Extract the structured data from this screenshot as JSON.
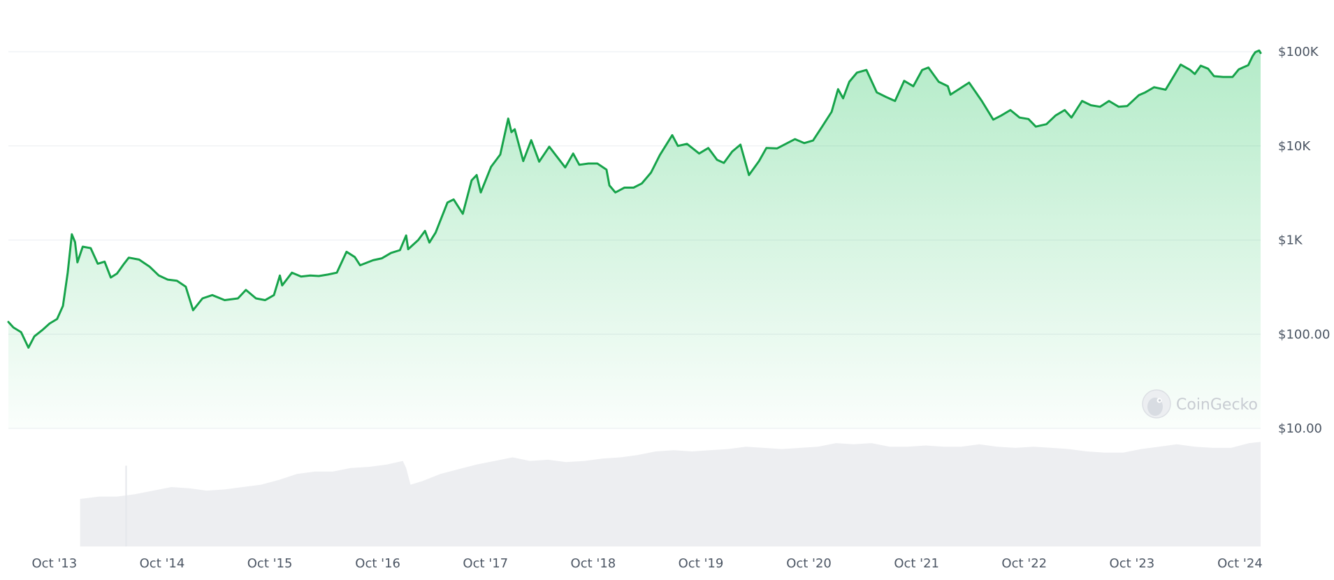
{
  "chart_data": {
    "type": "line",
    "title": "",
    "xlabel": "",
    "ylabel": "",
    "y_scale": "log",
    "ylim": [
      10,
      100000
    ],
    "y_ticks": [
      {
        "value": 100000,
        "label": "$100K"
      },
      {
        "value": 10000,
        "label": "$10K"
      },
      {
        "value": 1000,
        "label": "$1K"
      },
      {
        "value": 100,
        "label": "$100.00"
      },
      {
        "value": 10,
        "label": "$10.00"
      }
    ],
    "x_range": [
      "2013-04-28",
      "2024-12-10"
    ],
    "x_ticks": [
      {
        "date": "2013-10-01",
        "label": "Oct '13"
      },
      {
        "date": "2014-10-01",
        "label": "Oct '14"
      },
      {
        "date": "2015-10-01",
        "label": "Oct '15"
      },
      {
        "date": "2016-10-01",
        "label": "Oct '16"
      },
      {
        "date": "2017-10-01",
        "label": "Oct '17"
      },
      {
        "date": "2018-10-01",
        "label": "Oct '18"
      },
      {
        "date": "2019-10-01",
        "label": "Oct '19"
      },
      {
        "date": "2020-10-01",
        "label": "Oct '20"
      },
      {
        "date": "2021-10-01",
        "label": "Oct '21"
      },
      {
        "date": "2022-10-01",
        "label": "Oct '22"
      },
      {
        "date": "2023-10-01",
        "label": "Oct '23"
      },
      {
        "date": "2024-10-01",
        "label": "Oct '24"
      }
    ],
    "series": [
      {
        "color": "#16a34a",
        "points": [
          [
            "2013-04-28",
            135
          ],
          [
            "2013-05-15",
            118
          ],
          [
            "2013-06-10",
            105
          ],
          [
            "2013-07-05",
            72
          ],
          [
            "2013-07-25",
            95
          ],
          [
            "2013-08-20",
            110
          ],
          [
            "2013-09-15",
            130
          ],
          [
            "2013-10-10",
            145
          ],
          [
            "2013-10-30",
            200
          ],
          [
            "2013-11-15",
            450
          ],
          [
            "2013-11-29",
            1150
          ],
          [
            "2013-12-10",
            950
          ],
          [
            "2013-12-18",
            580
          ],
          [
            "2014-01-05",
            850
          ],
          [
            "2014-02-01",
            820
          ],
          [
            "2014-02-25",
            560
          ],
          [
            "2014-03-20",
            590
          ],
          [
            "2014-04-10",
            400
          ],
          [
            "2014-05-01",
            440
          ],
          [
            "2014-05-25",
            560
          ],
          [
            "2014-06-10",
            650
          ],
          [
            "2014-07-15",
            620
          ],
          [
            "2014-08-20",
            520
          ],
          [
            "2014-09-20",
            420
          ],
          [
            "2014-10-20",
            380
          ],
          [
            "2014-11-20",
            370
          ],
          [
            "2014-12-20",
            320
          ],
          [
            "2015-01-14",
            180
          ],
          [
            "2015-02-15",
            240
          ],
          [
            "2015-03-20",
            260
          ],
          [
            "2015-05-01",
            230
          ],
          [
            "2015-06-15",
            240
          ],
          [
            "2015-07-12",
            295
          ],
          [
            "2015-08-15",
            240
          ],
          [
            "2015-09-15",
            230
          ],
          [
            "2015-10-15",
            260
          ],
          [
            "2015-11-04",
            420
          ],
          [
            "2015-11-12",
            330
          ],
          [
            "2015-12-15",
            450
          ],
          [
            "2016-01-15",
            410
          ],
          [
            "2016-02-15",
            420
          ],
          [
            "2016-03-15",
            415
          ],
          [
            "2016-04-15",
            430
          ],
          [
            "2016-05-15",
            450
          ],
          [
            "2016-06-17",
            750
          ],
          [
            "2016-07-15",
            660
          ],
          [
            "2016-08-02",
            540
          ],
          [
            "2016-09-15",
            610
          ],
          [
            "2016-10-15",
            640
          ],
          [
            "2016-11-15",
            730
          ],
          [
            "2016-12-15",
            780
          ],
          [
            "2017-01-05",
            1120
          ],
          [
            "2017-01-12",
            800
          ],
          [
            "2017-02-15",
            1000
          ],
          [
            "2017-03-10",
            1250
          ],
          [
            "2017-03-25",
            940
          ],
          [
            "2017-04-15",
            1200
          ],
          [
            "2017-05-25",
            2500
          ],
          [
            "2017-06-15",
            2700
          ],
          [
            "2017-07-16",
            1900
          ],
          [
            "2017-08-15",
            4300
          ],
          [
            "2017-09-01",
            4900
          ],
          [
            "2017-09-15",
            3200
          ],
          [
            "2017-10-20",
            6000
          ],
          [
            "2017-11-20",
            8100
          ],
          [
            "2017-12-17",
            19500
          ],
          [
            "2017-12-28",
            14000
          ],
          [
            "2018-01-08",
            15000
          ],
          [
            "2018-02-06",
            6900
          ],
          [
            "2018-03-05",
            11500
          ],
          [
            "2018-04-01",
            6800
          ],
          [
            "2018-05-05",
            9800
          ],
          [
            "2018-06-28",
            5900
          ],
          [
            "2018-07-25",
            8300
          ],
          [
            "2018-08-15",
            6300
          ],
          [
            "2018-09-15",
            6500
          ],
          [
            "2018-10-15",
            6500
          ],
          [
            "2018-11-15",
            5600
          ],
          [
            "2018-11-25",
            3800
          ],
          [
            "2018-12-15",
            3200
          ],
          [
            "2019-01-15",
            3600
          ],
          [
            "2019-02-15",
            3600
          ],
          [
            "2019-03-15",
            4000
          ],
          [
            "2019-04-15",
            5200
          ],
          [
            "2019-05-15",
            8000
          ],
          [
            "2019-06-26",
            13000
          ],
          [
            "2019-07-15",
            10000
          ],
          [
            "2019-08-15",
            10500
          ],
          [
            "2019-09-25",
            8300
          ],
          [
            "2019-10-26",
            9500
          ],
          [
            "2019-11-25",
            7100
          ],
          [
            "2019-12-18",
            6600
          ],
          [
            "2020-01-15",
            8700
          ],
          [
            "2020-02-12",
            10300
          ],
          [
            "2020-03-12",
            4900
          ],
          [
            "2020-04-15",
            6900
          ],
          [
            "2020-05-10",
            9500
          ],
          [
            "2020-06-15",
            9400
          ],
          [
            "2020-07-27",
            11000
          ],
          [
            "2020-08-15",
            11800
          ],
          [
            "2020-09-15",
            10700
          ],
          [
            "2020-10-15",
            11400
          ],
          [
            "2020-11-15",
            16000
          ],
          [
            "2020-12-17",
            23000
          ],
          [
            "2021-01-08",
            40000
          ],
          [
            "2021-01-25",
            32000
          ],
          [
            "2021-02-15",
            48000
          ],
          [
            "2021-03-13",
            60000
          ],
          [
            "2021-04-14",
            64000
          ],
          [
            "2021-05-19",
            37000
          ],
          [
            "2021-06-20",
            33000
          ],
          [
            "2021-07-20",
            30000
          ],
          [
            "2021-08-20",
            49000
          ],
          [
            "2021-09-20",
            43000
          ],
          [
            "2021-10-20",
            64000
          ],
          [
            "2021-11-10",
            68000
          ],
          [
            "2021-12-15",
            48000
          ],
          [
            "2022-01-15",
            43000
          ],
          [
            "2022-01-24",
            35000
          ],
          [
            "2022-03-28",
            47000
          ],
          [
            "2022-05-10",
            30000
          ],
          [
            "2022-06-18",
            19000
          ],
          [
            "2022-07-15",
            21000
          ],
          [
            "2022-08-15",
            24000
          ],
          [
            "2022-09-15",
            20000
          ],
          [
            "2022-10-15",
            19300
          ],
          [
            "2022-11-09",
            16000
          ],
          [
            "2022-12-15",
            17000
          ],
          [
            "2023-01-15",
            21000
          ],
          [
            "2023-02-15",
            24000
          ],
          [
            "2023-03-10",
            20000
          ],
          [
            "2023-04-15",
            30000
          ],
          [
            "2023-05-15",
            27000
          ],
          [
            "2023-06-15",
            26000
          ],
          [
            "2023-07-15",
            30000
          ],
          [
            "2023-08-17",
            26000
          ],
          [
            "2023-09-15",
            26500
          ],
          [
            "2023-10-24",
            34500
          ],
          [
            "2023-11-15",
            37000
          ],
          [
            "2023-12-15",
            42000
          ],
          [
            "2024-01-23",
            39500
          ],
          [
            "2024-02-15",
            52000
          ],
          [
            "2024-03-14",
            73000
          ],
          [
            "2024-04-15",
            64000
          ],
          [
            "2024-05-01",
            58000
          ],
          [
            "2024-05-21",
            71000
          ],
          [
            "2024-06-15",
            66000
          ],
          [
            "2024-07-05",
            55000
          ],
          [
            "2024-08-05",
            54000
          ],
          [
            "2024-09-06",
            54000
          ],
          [
            "2024-09-27",
            65000
          ],
          [
            "2024-10-29",
            72000
          ],
          [
            "2024-11-13",
            90000
          ],
          [
            "2024-11-22",
            99000
          ],
          [
            "2024-12-05",
            103000
          ],
          [
            "2024-12-10",
            97000
          ]
        ]
      }
    ],
    "volume": {
      "color": "#e5e7eb",
      "points": [
        [
          "2013-12-27",
          0.4
        ],
        [
          "2014-03-01",
          0.42
        ],
        [
          "2014-05-01",
          0.42
        ],
        [
          "2014-07-01",
          0.44
        ],
        [
          "2014-09-01",
          0.47
        ],
        [
          "2014-11-01",
          0.5
        ],
        [
          "2015-01-01",
          0.49
        ],
        [
          "2015-03-01",
          0.47
        ],
        [
          "2015-05-01",
          0.48
        ],
        [
          "2015-07-01",
          0.5
        ],
        [
          "2015-09-01",
          0.52
        ],
        [
          "2015-11-01",
          0.56
        ],
        [
          "2016-01-01",
          0.61
        ],
        [
          "2016-03-01",
          0.63
        ],
        [
          "2016-05-01",
          0.63
        ],
        [
          "2016-07-01",
          0.66
        ],
        [
          "2016-09-01",
          0.67
        ],
        [
          "2016-11-01",
          0.69
        ],
        [
          "2016-12-25",
          0.72
        ],
        [
          "2017-01-05",
          0.66
        ],
        [
          "2017-01-20",
          0.52
        ],
        [
          "2017-03-01",
          0.55
        ],
        [
          "2017-05-01",
          0.61
        ],
        [
          "2017-07-01",
          0.65
        ],
        [
          "2017-09-01",
          0.69
        ],
        [
          "2017-11-01",
          0.72
        ],
        [
          "2018-01-01",
          0.75
        ],
        [
          "2018-03-01",
          0.72
        ],
        [
          "2018-05-01",
          0.73
        ],
        [
          "2018-07-01",
          0.71
        ],
        [
          "2018-09-01",
          0.72
        ],
        [
          "2018-11-01",
          0.74
        ],
        [
          "2019-01-01",
          0.75
        ],
        [
          "2019-03-01",
          0.77
        ],
        [
          "2019-05-01",
          0.8
        ],
        [
          "2019-07-01",
          0.81
        ],
        [
          "2019-09-01",
          0.8
        ],
        [
          "2019-11-01",
          0.81
        ],
        [
          "2020-01-01",
          0.82
        ],
        [
          "2020-03-01",
          0.84
        ],
        [
          "2020-05-01",
          0.83
        ],
        [
          "2020-07-01",
          0.82
        ],
        [
          "2020-09-01",
          0.83
        ],
        [
          "2020-11-01",
          0.84
        ],
        [
          "2021-01-01",
          0.87
        ],
        [
          "2021-03-01",
          0.86
        ],
        [
          "2021-05-01",
          0.87
        ],
        [
          "2021-07-01",
          0.84
        ],
        [
          "2021-09-01",
          0.84
        ],
        [
          "2021-11-01",
          0.85
        ],
        [
          "2022-01-01",
          0.84
        ],
        [
          "2022-03-01",
          0.84
        ],
        [
          "2022-05-01",
          0.86
        ],
        [
          "2022-07-01",
          0.84
        ],
        [
          "2022-09-01",
          0.83
        ],
        [
          "2022-11-01",
          0.84
        ],
        [
          "2023-01-01",
          0.83
        ],
        [
          "2023-03-01",
          0.82
        ],
        [
          "2023-05-01",
          0.8
        ],
        [
          "2023-07-01",
          0.79
        ],
        [
          "2023-09-01",
          0.79
        ],
        [
          "2023-11-01",
          0.82
        ],
        [
          "2024-01-01",
          0.84
        ],
        [
          "2024-03-01",
          0.86
        ],
        [
          "2024-05-01",
          0.84
        ],
        [
          "2024-07-01",
          0.83
        ],
        [
          "2024-09-01",
          0.83
        ],
        [
          "2024-11-01",
          0.87
        ],
        [
          "2024-12-10",
          0.88
        ]
      ],
      "spike": [
        "2014-06-01",
        0.68
      ]
    },
    "grid": true,
    "legend": "none"
  },
  "watermark": {
    "text": "CoinGecko",
    "icon": "gecko-logo-icon"
  }
}
